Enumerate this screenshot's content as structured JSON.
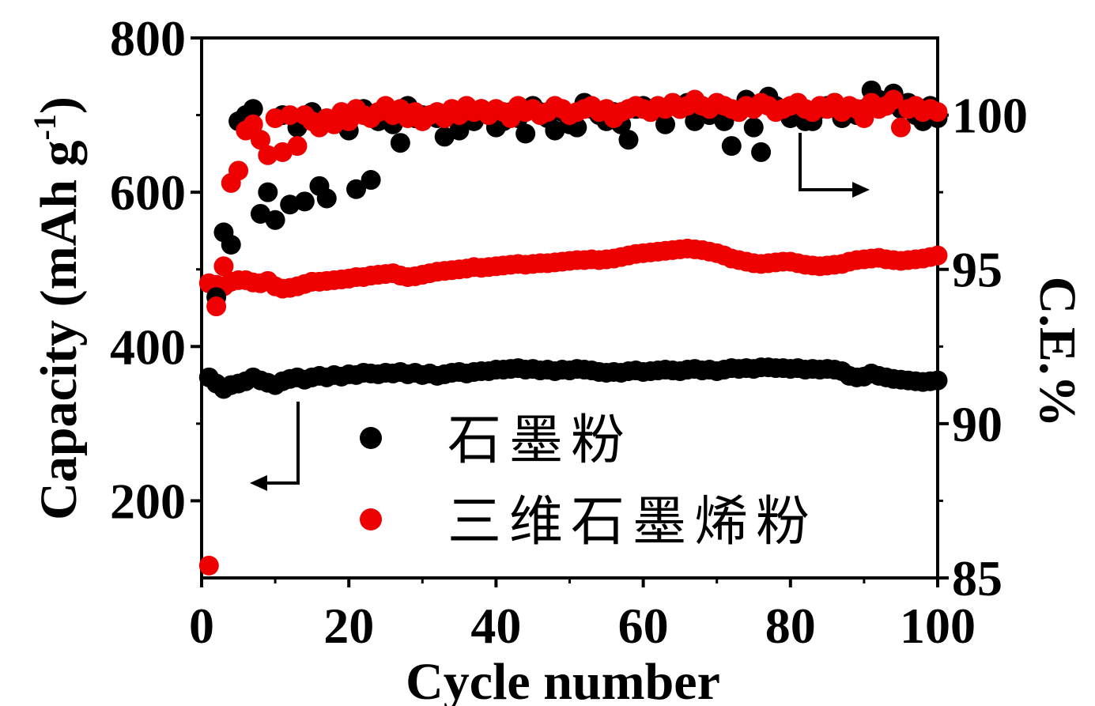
{
  "chart_data": {
    "type": "scatter",
    "xlabel": "Cycle number",
    "ylabel_left": "Capacity (mAh g",
    "ylabel_left_sup": "-1",
    "ylabel_left_close": ")",
    "ylabel_right": "C.E.%",
    "xlim": [
      0,
      100
    ],
    "ylim_left": [
      100,
      800
    ],
    "ylim_right": [
      85,
      102.5
    ],
    "x_ticks": [
      "0",
      "20",
      "40",
      "60",
      "80",
      "100"
    ],
    "y_left_ticks": [
      "200",
      "400",
      "600",
      "800"
    ],
    "y_right_ticks": [
      "85",
      "90",
      "95",
      "100"
    ],
    "colors": {
      "graphite": "#000000",
      "graphene": "#ee0000"
    },
    "legend": [
      {
        "label": "石墨粉",
        "color": "#000000"
      },
      {
        "label": "三维石墨烯粉",
        "color": "#ee0000"
      }
    ],
    "series": [
      {
        "name": "石墨粉 capacity",
        "axis": "left",
        "color": "#000000",
        "x": [
          1,
          2,
          3,
          4,
          5,
          6,
          7,
          8,
          9,
          10,
          11,
          12,
          13,
          14,
          15,
          16,
          17,
          18,
          19,
          20,
          21,
          22,
          23,
          24,
          25,
          26,
          27,
          28,
          29,
          30,
          31,
          32,
          33,
          34,
          35,
          36,
          37,
          38,
          39,
          40,
          41,
          42,
          43,
          44,
          45,
          46,
          47,
          48,
          49,
          50,
          51,
          52,
          53,
          54,
          55,
          56,
          57,
          58,
          59,
          60,
          61,
          62,
          63,
          64,
          65,
          66,
          67,
          68,
          69,
          70,
          71,
          72,
          73,
          74,
          75,
          76,
          77,
          78,
          79,
          80,
          81,
          82,
          83,
          84,
          85,
          86,
          87,
          88,
          89,
          90,
          91,
          92,
          93,
          94,
          95,
          96,
          97,
          98,
          99,
          100
        ],
        "values": [
          360,
          352,
          345,
          350,
          352,
          355,
          360,
          356,
          353,
          350,
          355,
          358,
          360,
          357,
          360,
          362,
          360,
          363,
          361,
          364,
          363,
          366,
          365,
          364,
          366,
          365,
          367,
          364,
          366,
          363,
          365,
          362,
          364,
          366,
          367,
          365,
          367,
          368,
          368,
          370,
          370,
          371,
          372,
          370,
          371,
          369,
          370,
          368,
          370,
          369,
          371,
          370,
          369,
          367,
          366,
          367,
          366,
          368,
          369,
          367,
          368,
          369,
          370,
          369,
          368,
          370,
          371,
          369,
          370,
          368,
          370,
          372,
          371,
          372,
          371,
          373,
          373,
          372,
          372,
          371,
          372,
          370,
          371,
          370,
          371,
          370,
          368,
          362,
          360,
          361,
          365,
          362,
          360,
          358,
          357,
          356,
          355,
          354,
          355,
          356
        ]
      },
      {
        "name": "三维石墨烯粉 capacity",
        "axis": "left",
        "color": "#ee0000",
        "x": [
          1,
          2,
          3,
          4,
          5,
          6,
          7,
          8,
          9,
          10,
          11,
          12,
          13,
          14,
          15,
          16,
          17,
          18,
          19,
          20,
          21,
          22,
          23,
          24,
          25,
          26,
          27,
          28,
          29,
          30,
          31,
          32,
          33,
          34,
          35,
          36,
          37,
          38,
          39,
          40,
          41,
          42,
          43,
          44,
          45,
          46,
          47,
          48,
          49,
          50,
          51,
          52,
          53,
          54,
          55,
          56,
          57,
          58,
          59,
          60,
          61,
          62,
          63,
          64,
          65,
          66,
          67,
          68,
          69,
          70,
          71,
          72,
          73,
          74,
          75,
          76,
          77,
          78,
          79,
          80,
          81,
          82,
          83,
          84,
          85,
          86,
          87,
          88,
          89,
          90,
          91,
          92,
          93,
          94,
          95,
          96,
          97,
          98,
          99,
          100
        ],
        "values": [
          482,
          480,
          478,
          484,
          486,
          486,
          483,
          482,
          485,
          478,
          475,
          476,
          478,
          481,
          484,
          484,
          485,
          486,
          487,
          488,
          490,
          490,
          492,
          493,
          494,
          495,
          492,
          490,
          491,
          493,
          495,
          497,
          498,
          499,
          500,
          501,
          503,
          502,
          503,
          504,
          505,
          506,
          507,
          506,
          507,
          508,
          508,
          509,
          510,
          511,
          512,
          512,
          513,
          512,
          513,
          514,
          516,
          518,
          520,
          521,
          522,
          523,
          524,
          525,
          526,
          527,
          526,
          525,
          523,
          521,
          518,
          514,
          512,
          510,
          508,
          507,
          508,
          509,
          510,
          510,
          508,
          506,
          505,
          504,
          505,
          506,
          507,
          510,
          512,
          513,
          514,
          515,
          513,
          512,
          511,
          512,
          513,
          514,
          516,
          518
        ]
      },
      {
        "name": "石墨粉 C.E.",
        "axis": "right",
        "color": "#000000",
        "x": [
          2,
          3,
          4,
          5,
          6,
          7,
          8,
          9,
          10,
          11,
          12,
          13,
          14,
          15,
          16,
          17,
          18,
          19,
          20,
          21,
          22,
          23,
          24,
          25,
          26,
          27,
          28,
          29,
          30,
          31,
          32,
          33,
          34,
          35,
          36,
          37,
          38,
          39,
          40,
          41,
          42,
          43,
          44,
          45,
          46,
          47,
          48,
          49,
          50,
          51,
          52,
          53,
          54,
          55,
          56,
          57,
          58,
          59,
          60,
          61,
          62,
          63,
          64,
          65,
          66,
          67,
          68,
          69,
          70,
          71,
          72,
          73,
          74,
          75,
          76,
          77,
          78,
          79,
          80,
          81,
          82,
          83,
          84,
          85,
          86,
          87,
          88,
          89,
          90,
          91,
          92,
          93,
          94,
          95,
          96,
          97,
          98,
          99,
          100
        ],
        "values": [
          94.1,
          96.2,
          95.8,
          99.8,
          100.0,
          100.2,
          96.8,
          97.5,
          96.6,
          100.0,
          97.1,
          99.6,
          97.2,
          100.1,
          97.7,
          97.3,
          99.8,
          99.9,
          99.5,
          97.6,
          100.2,
          97.9,
          99.8,
          100.1,
          99.7,
          99.1,
          100.3,
          99.9,
          100.0,
          100.0,
          99.9,
          99.3,
          100.0,
          99.5,
          100.1,
          99.8,
          100.2,
          100.0,
          99.6,
          99.8,
          100.1,
          99.9,
          99.4,
          100.3,
          100.1,
          99.9,
          99.5,
          100.1,
          99.7,
          99.6,
          100.4,
          100.2,
          100.0,
          99.8,
          100.1,
          99.7,
          99.2,
          100.2,
          100.3,
          100.1,
          100.2,
          99.7,
          100.3,
          100.2,
          100.4,
          99.8,
          100.1,
          100.0,
          100.2,
          99.8,
          99.0,
          100.1,
          100.5,
          99.6,
          98.8,
          100.6,
          100.3,
          100.2,
          99.9,
          100.1,
          99.8,
          99.8,
          100.2,
          100.3,
          100.4,
          99.9,
          100.1,
          100.0,
          100.2,
          100.8,
          100.5,
          100.3,
          100.7,
          100.2,
          100.4,
          100.0,
          99.8,
          100.3,
          99.9
        ]
      },
      {
        "name": "三维石墨烯粉 C.E.",
        "axis": "right",
        "color": "#ee0000",
        "x": [
          1,
          2,
          3,
          4,
          5,
          6,
          7,
          8,
          9,
          10,
          11,
          12,
          13,
          14,
          15,
          16,
          17,
          18,
          19,
          20,
          21,
          22,
          23,
          24,
          25,
          26,
          27,
          28,
          29,
          30,
          31,
          32,
          33,
          34,
          35,
          36,
          37,
          38,
          39,
          40,
          41,
          42,
          43,
          44,
          45,
          46,
          47,
          48,
          49,
          50,
          51,
          52,
          53,
          54,
          55,
          56,
          57,
          58,
          59,
          60,
          61,
          62,
          63,
          64,
          65,
          66,
          67,
          68,
          69,
          70,
          71,
          72,
          73,
          74,
          75,
          76,
          77,
          78,
          79,
          80,
          81,
          82,
          83,
          84,
          85,
          86,
          87,
          88,
          89,
          90,
          91,
          92,
          93,
          94,
          95,
          96,
          97,
          98,
          99,
          100
        ],
        "values": [
          85.4,
          93.8,
          95.1,
          97.8,
          98.2,
          99.5,
          99.7,
          99.2,
          98.7,
          99.9,
          98.8,
          100.0,
          99.0,
          100.0,
          99.8,
          99.6,
          99.9,
          99.7,
          100.1,
          99.8,
          100.2,
          100.0,
          99.9,
          100.1,
          100.3,
          100.0,
          100.2,
          99.9,
          100.1,
          99.8,
          100.0,
          100.1,
          99.9,
          100.2,
          100.0,
          100.3,
          100.1,
          100.2,
          100.0,
          100.2,
          100.1,
          99.9,
          100.3,
          100.1,
          100.2,
          100.0,
          100.1,
          100.3,
          100.2,
          100.0,
          100.1,
          100.2,
          100.3,
          100.1,
          100.2,
          99.9,
          100.1,
          100.2,
          100.3,
          100.2,
          100.1,
          100.3,
          100.2,
          100.4,
          100.2,
          100.3,
          100.5,
          100.3,
          100.2,
          100.4,
          100.3,
          100.2,
          100.1,
          100.3,
          100.2,
          100.4,
          100.3,
          100.1,
          100.2,
          100.3,
          100.4,
          100.2,
          100.1,
          100.3,
          100.2,
          100.4,
          100.1,
          100.3,
          100.2,
          99.9,
          100.4,
          100.2,
          100.3,
          100.5,
          99.6,
          100.2,
          100.3,
          100.1,
          100.2,
          100.1
        ]
      }
    ]
  }
}
